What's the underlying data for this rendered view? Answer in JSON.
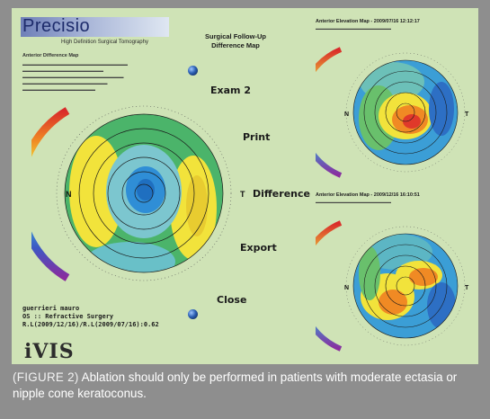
{
  "app": {
    "logo": "Precisio",
    "logo_subtitle": "High Definition Surgical Tomography",
    "title_line1": "Surgical Follow-Up",
    "title_line2": "Difference Map",
    "brand": "iVIS"
  },
  "left_panel": {
    "header": "Anterior Difference Map"
  },
  "buttons": {
    "exam2": "Exam 2",
    "print": "Print",
    "difference": "Difference",
    "export": "Export",
    "close": "Close"
  },
  "main_map": {
    "label_n": "N",
    "label_t": "T"
  },
  "patient": {
    "name": "guerrieri mauro",
    "eye": "OS :: Refractive Surgery",
    "dates": "R.L(2009/12/16)/R.L(2009/07/16):0.62"
  },
  "maps": {
    "top": {
      "title": "Anterior Elevation Map - 2009/07/16 12:12:17",
      "label_n": "N",
      "label_t": "T"
    },
    "bottom": {
      "title": "Anterior Elevation Map - 2009/12/16 16:10:51",
      "label_n": "N",
      "label_t": "T"
    }
  },
  "caption": {
    "label": "(FIGURE 2)",
    "text": "Ablation should only be performed in patients with moderate ectasia or nipple cone keratoconus."
  },
  "colors": {
    "screen_bg": "#cfe3b6",
    "caption_bg": "#8e8e8e",
    "map_green": "#4bb46a",
    "map_yellow": "#f2e33b",
    "map_blue": "#3b9ed6",
    "map_red": "#e0392a"
  }
}
